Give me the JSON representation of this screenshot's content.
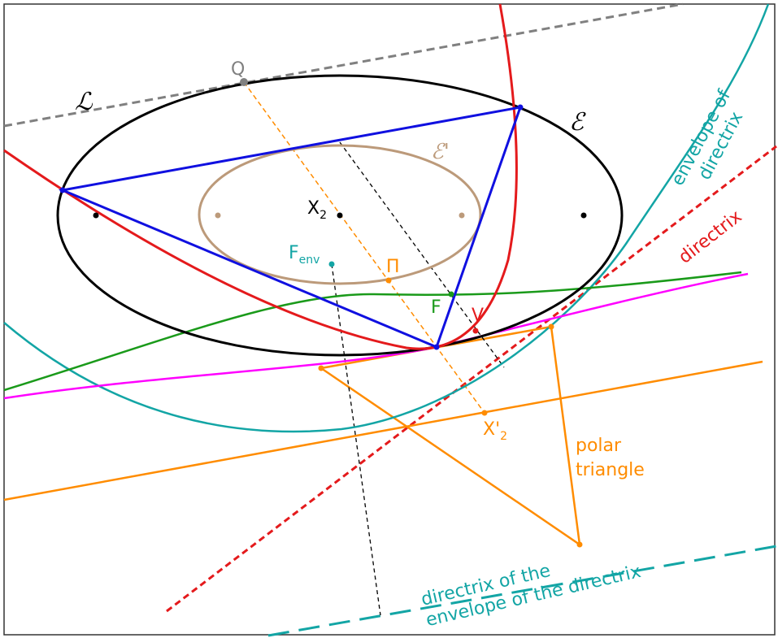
{
  "labels": {
    "line_l": "ℒ",
    "q": "Q",
    "ellipse_e": "ℰ",
    "ellipse_e_prime": "ℰ'",
    "x2": {
      "text": "X",
      "sub": "2"
    },
    "f_env": {
      "text": "F",
      "sub": "env"
    },
    "pi": "Π",
    "f": "F",
    "v": "V",
    "x2_prime": {
      "text": "X'",
      "sub": "2"
    },
    "envelope_of_directrix": [
      "envelope of",
      "directrix"
    ],
    "directrix": "directrix",
    "polar_triangle": [
      "polar",
      "triangle"
    ],
    "directrix_of_envelope": [
      "directrix of the",
      "envelope of the directrix"
    ]
  }
}
